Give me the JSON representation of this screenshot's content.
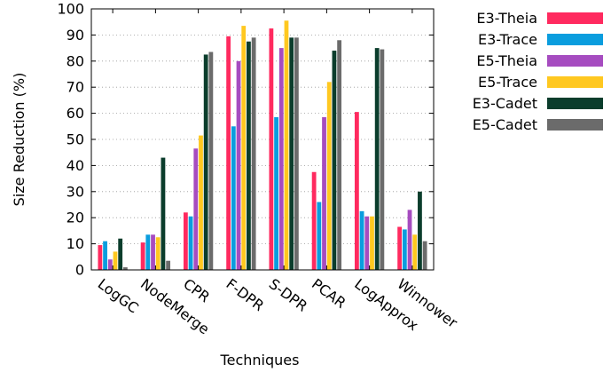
{
  "chart_data": {
    "type": "bar",
    "title": "",
    "xlabel": "Techniques",
    "ylabel": "Size Reduction (%)",
    "ylim": [
      0,
      100
    ],
    "yticks": [
      0,
      10,
      20,
      30,
      40,
      50,
      60,
      70,
      80,
      90,
      100
    ],
    "grid": "dotted horizontal",
    "legend_position": "top-right (outside plot)",
    "categories": [
      "LogGC",
      "NodeMerge",
      "CPR",
      "F-DPR",
      "S-DPR",
      "PCAR",
      "LogApprox",
      "Winnower"
    ],
    "series": [
      {
        "name": "E3-Theia",
        "color": "#ff2a5f",
        "values": [
          9.5,
          10.5,
          22,
          89.5,
          92.5,
          37.5,
          60.5,
          16.5
        ]
      },
      {
        "name": "E3-Trace",
        "color": "#0a9dde",
        "values": [
          11,
          13.5,
          20.5,
          55,
          58.5,
          26,
          22.5,
          15.5
        ]
      },
      {
        "name": "E5-Theia",
        "color": "#a64cc0",
        "values": [
          4,
          13.5,
          46.5,
          80,
          85,
          58.5,
          20.5,
          23
        ]
      },
      {
        "name": "E5-Trace",
        "color": "#ffc820",
        "values": [
          7,
          12.5,
          51.5,
          93.5,
          95.5,
          72,
          20.5,
          13.5
        ]
      },
      {
        "name": "E3-Cadet",
        "color": "#0b3d2c",
        "values": [
          12,
          43,
          82.5,
          87.5,
          89,
          84,
          85,
          30
        ]
      },
      {
        "name": "E5-Cadet",
        "color": "#6b6b6b",
        "values": [
          1,
          3.5,
          83.5,
          89,
          89,
          88,
          84.5,
          11
        ]
      }
    ]
  }
}
